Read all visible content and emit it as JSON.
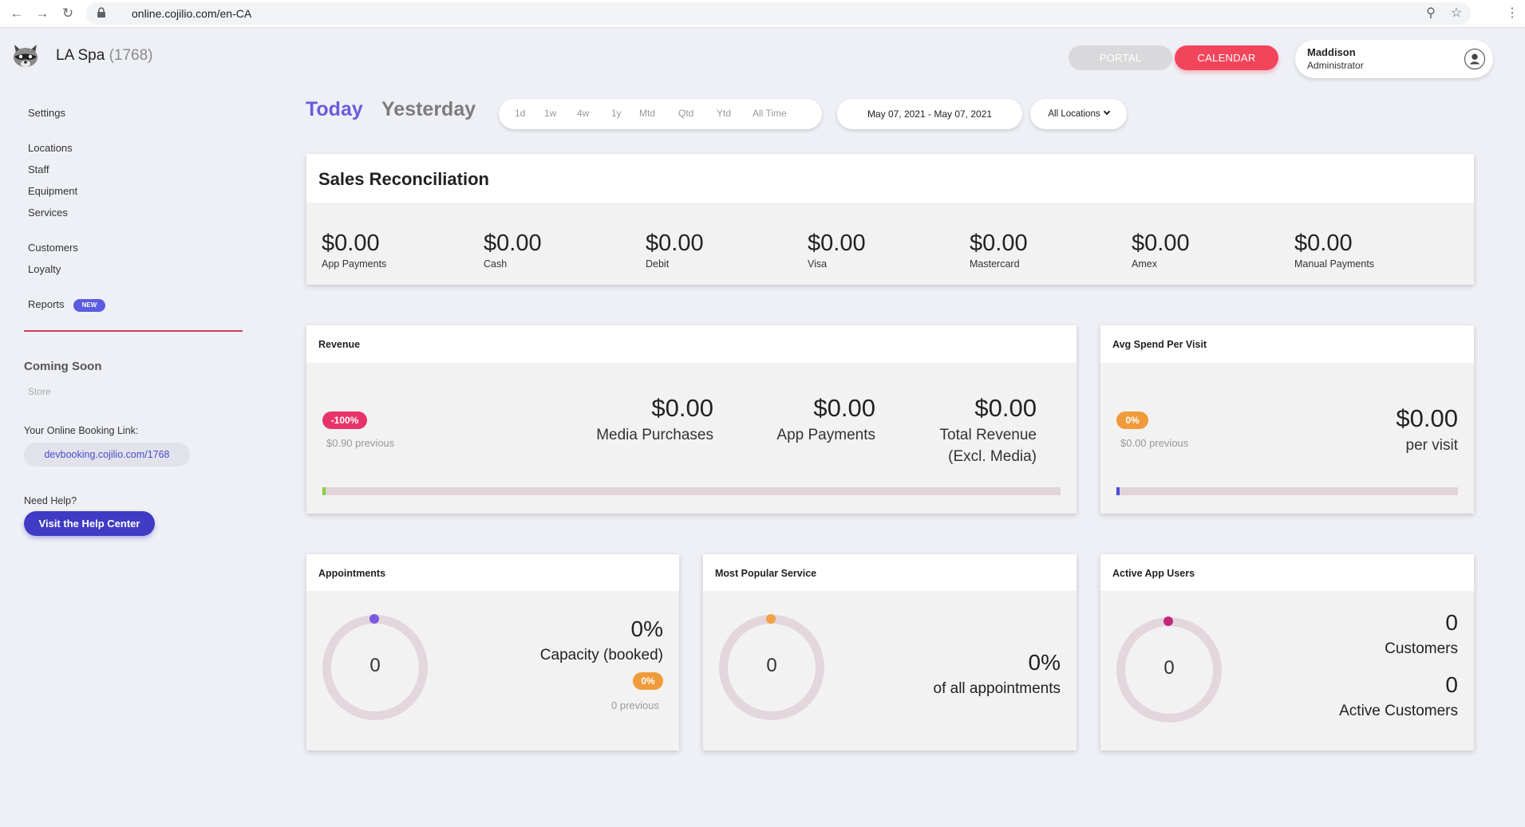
{
  "browser": {
    "url": "online.cojilio.com/en-CA"
  },
  "header": {
    "brand_name": "LA Spa",
    "brand_id": "(1768)",
    "portal_label": "PORTAL",
    "calendar_label": "CALENDAR",
    "user_name": "Maddison",
    "user_role": "Administrator"
  },
  "sidebar": {
    "items": [
      "Settings",
      "Locations",
      "Staff",
      "Equipment",
      "Services",
      "Customers",
      "Loyalty",
      "Reports"
    ],
    "new_badge": "NEW",
    "coming_soon": "Coming Soon",
    "store": "Store",
    "booking_label": "Your Online Booking Link:",
    "booking_link": "devbooking.cojilio.com/1768",
    "help_label": "Need Help?",
    "help_button": "Visit the Help Center"
  },
  "filters": {
    "today": "Today",
    "yesterday": "Yesterday",
    "ranges": [
      "1d",
      "1w",
      "4w",
      "1y",
      "Mtd",
      "Qtd",
      "Ytd",
      "All Time"
    ],
    "date_range": "May 07, 2021 - May 07, 2021",
    "location": "All Locations"
  },
  "sales_reconciliation": {
    "title": "Sales Reconciliation",
    "items": [
      {
        "amount": "$0.00",
        "label": "App Payments"
      },
      {
        "amount": "$0.00",
        "label": "Cash"
      },
      {
        "amount": "$0.00",
        "label": "Debit"
      },
      {
        "amount": "$0.00",
        "label": "Visa"
      },
      {
        "amount": "$0.00",
        "label": "Mastercard"
      },
      {
        "amount": "$0.00",
        "label": "Amex"
      },
      {
        "amount": "$0.00",
        "label": "Manual Payments"
      }
    ]
  },
  "revenue": {
    "title": "Revenue",
    "badge": "-100%",
    "previous": "$0.90 previous",
    "media_amount": "$0.00",
    "media_label": "Media Purchases",
    "app_amount": "$0.00",
    "app_label": "App Payments",
    "total_amount": "$0.00",
    "total_label_1": "Total Revenue",
    "total_label_2": "(Excl. Media)",
    "progress": 0,
    "accent": "#8bd13c"
  },
  "avg_spend": {
    "title": "Avg Spend Per Visit",
    "badge": "0%",
    "previous": "$0.00 previous",
    "amount": "$0.00",
    "label": "per visit",
    "progress": 0,
    "accent": "#4b4bd8"
  },
  "appointments": {
    "title": "Appointments",
    "ring_value": "0",
    "percent": "0%",
    "label": "Capacity (booked)",
    "badge": "0%",
    "previous": "0 previous",
    "dot_color": "#7c5ae0"
  },
  "popular_service": {
    "title": "Most Popular Service",
    "ring_value": "0",
    "percent": "0%",
    "label": "of all appointments",
    "dot_color": "#f2a245"
  },
  "app_users": {
    "title": "Active App Users",
    "ring_value": "0",
    "customers_value": "0",
    "customers_label": "Customers",
    "active_value": "0",
    "active_label": "Active Customers",
    "dot_color": "#c2277a"
  },
  "colors": {
    "accent": "#6a5bdb",
    "calendar": "#f2445b",
    "badge_negative": "#e8326a",
    "badge_neutral": "#f09a3a"
  }
}
